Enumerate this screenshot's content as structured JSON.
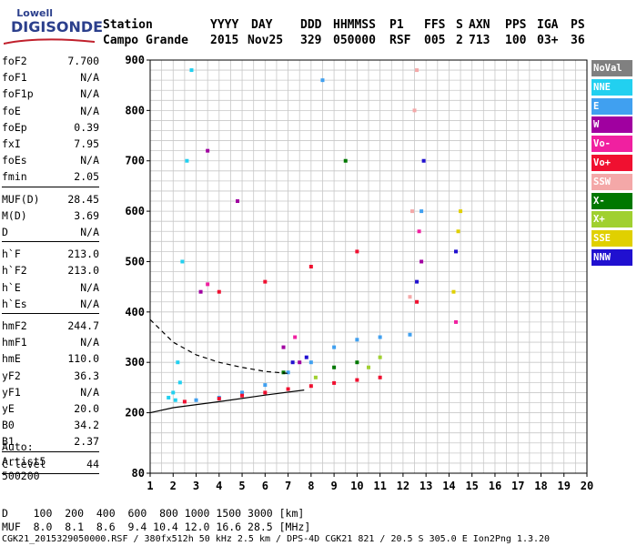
{
  "logo": {
    "brand": "Lowell",
    "product": "DIGISONDE"
  },
  "header": {
    "labels": [
      "Station",
      "YYYY",
      "DAY",
      "DDD",
      "HHMMSS",
      "P1",
      "FFS",
      "S",
      "AXN",
      "PPS",
      "IGA",
      "PS"
    ],
    "values": [
      "Campo Grande",
      "2015",
      "Nov25",
      "329",
      "050000",
      "RSF",
      "005",
      "2",
      "713",
      "100",
      "03+",
      "36"
    ]
  },
  "params": {
    "group1": [
      {
        "k": "foF2",
        "v": "7.700"
      },
      {
        "k": "foF1",
        "v": "N/A"
      },
      {
        "k": "foF1p",
        "v": "N/A"
      },
      {
        "k": "foE",
        "v": "N/A"
      },
      {
        "k": "foEp",
        "v": "0.39"
      },
      {
        "k": "fxI",
        "v": "7.95"
      },
      {
        "k": "foEs",
        "v": "N/A"
      },
      {
        "k": "fmin",
        "v": "2.05"
      }
    ],
    "group2": [
      {
        "k": "MUF(D)",
        "v": "28.45"
      },
      {
        "k": "M(D)",
        "v": "3.69"
      },
      {
        "k": "D",
        "v": "N/A"
      }
    ],
    "group3": [
      {
        "k": "h`F",
        "v": "213.0"
      },
      {
        "k": "h`F2",
        "v": "213.0"
      },
      {
        "k": "h`E",
        "v": "N/A"
      },
      {
        "k": "h`Es",
        "v": "N/A"
      }
    ],
    "group4": [
      {
        "k": "hmF2",
        "v": "244.7"
      },
      {
        "k": "hmF1",
        "v": "N/A"
      },
      {
        "k": "hmE",
        "v": "110.0"
      },
      {
        "k": "yF2",
        "v": "36.3"
      },
      {
        "k": "yF1",
        "v": "N/A"
      },
      {
        "k": "yE",
        "v": "20.0"
      },
      {
        "k": "B0",
        "v": "34.2"
      },
      {
        "k": "B1",
        "v": "2.37"
      }
    ],
    "clevel": {
      "k": "C-level",
      "v": "44"
    }
  },
  "misc": {
    "line1": "Auto:",
    "line2": "Artist5",
    "line3": "500200"
  },
  "legend": [
    {
      "label": "NoVal",
      "color": "#808080"
    },
    {
      "label": "NNE",
      "color": "#22d0f0"
    },
    {
      "label": "E",
      "color": "#40a0f0"
    },
    {
      "label": "W",
      "color": "#a000a0"
    },
    {
      "label": "Vo-",
      "color": "#f020a0"
    },
    {
      "label": "Vo+",
      "color": "#f01030"
    },
    {
      "label": "SSW",
      "color": "#f4a8a8"
    },
    {
      "label": "X-",
      "color": "#007800"
    },
    {
      "label": "X+",
      "color": "#a0d030"
    },
    {
      "label": "SSE",
      "color": "#e0d000"
    },
    {
      "label": "NNW",
      "color": "#2010d0"
    }
  ],
  "footer": {
    "d_row": "D    100  200  400  600  800 1000 1500 3000 [km]",
    "muf_row": "MUF  8.0  8.1  8.6  9.4 10.4 12.0 16.6 28.5 [MHz]",
    "file_row": "CGK21_2015329050000.RSF / 380fx512h 50 kHz 2.5 km / DPS-4D CGK21 821 / 20.5 S 305.0 E Ion2Png 1.3.20"
  },
  "chart_data": {
    "type": "scatter",
    "xlim": [
      1,
      20
    ],
    "ylim": [
      80,
      900
    ],
    "xticks": [
      1,
      2,
      3,
      4,
      5,
      6,
      7,
      8,
      9,
      10,
      11,
      12,
      13,
      14,
      15,
      16,
      17,
      18,
      19,
      20
    ],
    "yticks": [
      80,
      200,
      300,
      400,
      500,
      600,
      700,
      800,
      900
    ],
    "grid": true,
    "legend_position": "right",
    "series": [
      {
        "name": "NNE",
        "points": [
          [
            1.8,
            230
          ],
          [
            2.0,
            240
          ],
          [
            2.2,
            300
          ],
          [
            2.4,
            500
          ],
          [
            2.6,
            700
          ],
          [
            2.8,
            880
          ],
          [
            2.1,
            225
          ],
          [
            2.3,
            260
          ]
        ]
      },
      {
        "name": "E",
        "points": [
          [
            3,
            225
          ],
          [
            4,
            230
          ],
          [
            5,
            240
          ],
          [
            6,
            255
          ],
          [
            7,
            280
          ],
          [
            8,
            300
          ],
          [
            9,
            330
          ],
          [
            10,
            345
          ],
          [
            11,
            350
          ],
          [
            12.3,
            355
          ],
          [
            8.5,
            860
          ],
          [
            12.8,
            600
          ]
        ]
      },
      {
        "name": "W",
        "points": [
          [
            3.5,
            720
          ],
          [
            4.8,
            620
          ],
          [
            6.8,
            330
          ],
          [
            7.5,
            300
          ],
          [
            3.2,
            440
          ],
          [
            12.8,
            500
          ]
        ]
      },
      {
        "name": "Vo-",
        "points": [
          [
            3.5,
            455
          ],
          [
            7.3,
            350
          ],
          [
            12.7,
            560
          ],
          [
            14.3,
            380
          ]
        ]
      },
      {
        "name": "Vo+",
        "points": [
          [
            2.5,
            222
          ],
          [
            4,
            228
          ],
          [
            5,
            234
          ],
          [
            6,
            240
          ],
          [
            7,
            247
          ],
          [
            8,
            253
          ],
          [
            9,
            259
          ],
          [
            10,
            265
          ],
          [
            11,
            270
          ],
          [
            4,
            440
          ],
          [
            6,
            460
          ],
          [
            8,
            490
          ],
          [
            10,
            520
          ],
          [
            12.6,
            420
          ]
        ]
      },
      {
        "name": "SSW",
        "points": [
          [
            12.3,
            430
          ],
          [
            12.4,
            600
          ],
          [
            12.5,
            800
          ],
          [
            12.6,
            880
          ]
        ]
      },
      {
        "name": "X-",
        "points": [
          [
            6.8,
            280
          ],
          [
            9,
            290
          ],
          [
            10,
            300
          ],
          [
            9.5,
            700
          ]
        ]
      },
      {
        "name": "X+",
        "points": [
          [
            8.2,
            270
          ],
          [
            10.5,
            290
          ],
          [
            11,
            310
          ]
        ]
      },
      {
        "name": "SSE",
        "points": [
          [
            14.4,
            560
          ],
          [
            14.5,
            600
          ],
          [
            14.2,
            440
          ]
        ]
      },
      {
        "name": "NNW",
        "points": [
          [
            7.2,
            300
          ],
          [
            7.8,
            310
          ],
          [
            12.9,
            700
          ],
          [
            12.6,
            460
          ],
          [
            14.3,
            520
          ]
        ]
      }
    ],
    "profile_dashed": {
      "x": [
        1,
        2,
        3,
        4,
        5,
        6,
        7
      ],
      "y": [
        385,
        340,
        315,
        300,
        290,
        282,
        278
      ]
    },
    "profile_solid": {
      "x": [
        1,
        2,
        4,
        6,
        7.7
      ],
      "y": [
        200,
        210,
        222,
        235,
        245
      ]
    }
  }
}
